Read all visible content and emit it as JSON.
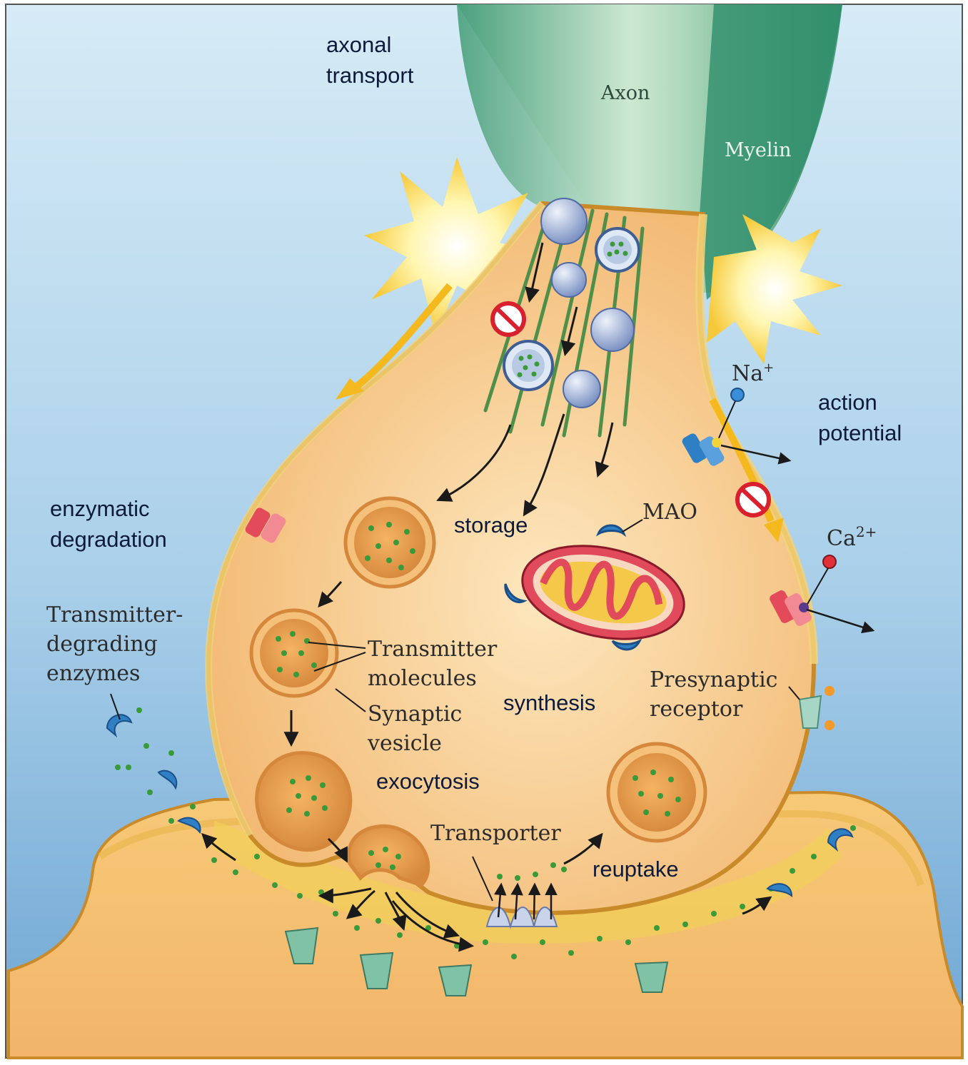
{
  "labels": {
    "axonal_transport": [
      "axonal",
      "transport"
    ],
    "axon": "Axon",
    "myelin": "Myelin",
    "na": "Na",
    "na_sup": "+",
    "action_potential": [
      "action",
      "potential"
    ],
    "ca": "Ca",
    "ca_sup": "2+",
    "mao": "MAO",
    "storage": "storage",
    "enzymatic_degradation": [
      "enzymatic",
      "degradation"
    ],
    "transmitter_degrading_enzymes": [
      "Transmitter-",
      "degrading",
      "enzymes"
    ],
    "transmitter_molecules": [
      "Transmitter",
      "molecules"
    ],
    "synaptic_vesicle": [
      "Synaptic",
      "vesicle"
    ],
    "synthesis": "synthesis",
    "presynaptic_receptor": [
      "Presynaptic",
      "receptor"
    ],
    "exocytosis": "exocytosis",
    "transporter": "Transporter",
    "reuptake": "reuptake"
  },
  "colors": {
    "background_top": "#cfe6f4",
    "background_bottom": "#6fa9d6",
    "terminal_fill": "#f6c98a",
    "membrane": "#d9a13a",
    "membrane_inner": "#f3d27a",
    "axon": "#9fd3b8",
    "myelin": "#2f8f6c",
    "vesicle": "#e8a04d",
    "transmitter": "#3a9a3a",
    "enzyme": "#2f7fc4",
    "channel_red": "#e34a5a",
    "receptor": "#6fb59a",
    "mitochondrion": "#d9495a",
    "inhibit": "#d8202f"
  }
}
